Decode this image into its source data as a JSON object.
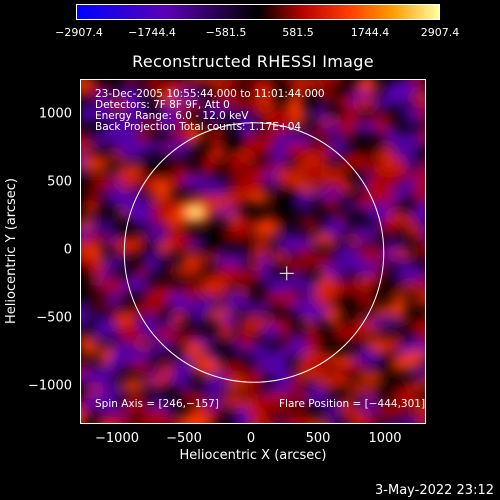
{
  "colorbar": {
    "tick_labels": [
      "−2907.4",
      "−1744.4",
      "−581.5",
      "581.5",
      "1744.4",
      "2907.4"
    ],
    "tick_values": [
      -2907.4,
      -1744.4,
      -581.5,
      581.5,
      1744.4,
      2907.4
    ],
    "min": -2907.4,
    "max": 2907.4,
    "colors": [
      "#0000ff",
      "#5a00b4",
      "#000000",
      "#b40000",
      "#ff3c00",
      "#ff9a00",
      "#ffffa0"
    ]
  },
  "chart_data": {
    "type": "heatmap",
    "title": "Reconstructed RHESSI Image",
    "xlabel": "Heliocentric X (arcsec)",
    "ylabel": "Heliocentric Y (arcsec)",
    "xlim": [
      -1300,
      1300
    ],
    "ylim": [
      -1300,
      1300
    ],
    "x_ticks": [
      -1000,
      -500,
      0,
      500,
      1000
    ],
    "y_ticks": [
      -1000,
      -500,
      0,
      500,
      1000
    ],
    "x_tick_labels": [
      "−1000",
      "−500",
      "0",
      "500",
      "1000"
    ],
    "y_tick_labels": [
      "−1000",
      "−500",
      "0",
      "500",
      "1000"
    ],
    "solar_limb_radius": 975,
    "flare_position": [
      -444,
      301
    ],
    "spin_axis": [
      246,
      -157
    ],
    "peak_value": 2907.4,
    "annotation_lines": [
      "23-Dec-2005 10:55:44.000 to 11:01:44.000",
      "Detectors: 7F 8F 9F, Att 0",
      "Energy Range: 6.0 - 12.0 keV",
      "Back Projection   Total counts: 1.17E+04"
    ],
    "bottom_annotations": {
      "spin_axis": "Spin Axis = [246,−157]",
      "flare_position": "Flare Position = [−444,301]"
    }
  },
  "footer": {
    "timestamp": "3-May-2022 23:12"
  }
}
